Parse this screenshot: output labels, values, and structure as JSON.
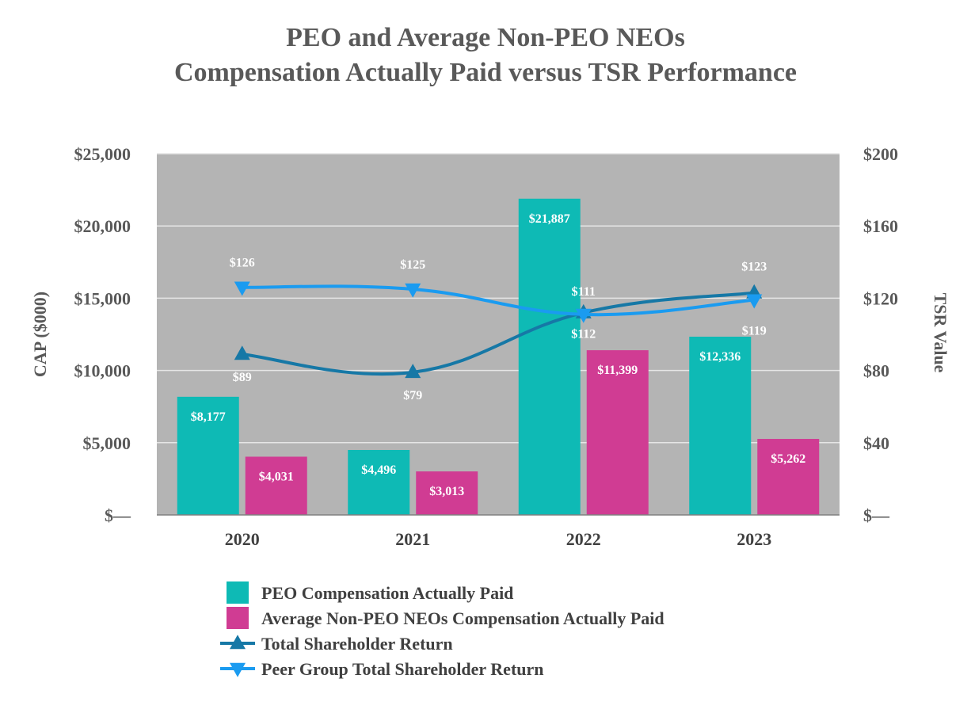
{
  "title_lines": [
    "PEO and Average Non-PEO NEOs",
    "Compensation Actually Paid versus TSR Performance"
  ],
  "chart_data": {
    "type": "bar",
    "categories": [
      "2020",
      "2021",
      "2022",
      "2023"
    ],
    "left_axis": {
      "label": "CAP ($000)",
      "min": 0,
      "max": 25000,
      "step": 5000,
      "ticks": [
        "$—",
        "$5,000",
        "$10,000",
        "$15,000",
        "$20,000",
        "$25,000"
      ]
    },
    "right_axis": {
      "label": "TSR Value",
      "min": 0,
      "max": 200,
      "step": 40,
      "ticks": [
        "$—",
        "$40",
        "$80",
        "$120",
        "$160",
        "$200"
      ]
    },
    "bar_series": [
      {
        "name": "PEO Compensation Actually Paid",
        "color": "#0ebab5",
        "values": [
          8177,
          4496,
          21887,
          12336
        ],
        "labels": [
          "$8,177",
          "$4,496",
          "$21,887",
          "$12,336"
        ]
      },
      {
        "name": "Average Non-PEO NEOs Compensation Actually Paid",
        "color": "#d03c93",
        "values": [
          4031,
          3013,
          11399,
          5262
        ],
        "labels": [
          "$4,031",
          "$3,013",
          "$11,399",
          "$5,262"
        ]
      }
    ],
    "line_series": [
      {
        "name": "Total Shareholder Return",
        "color": "#1678a6",
        "marker": "triangle-up",
        "values": [
          89,
          79,
          112,
          123
        ],
        "labels": [
          "$89",
          "$79",
          "$112",
          "$123"
        ]
      },
      {
        "name": "Peer Group Total Shareholder Return",
        "color": "#1a9bf0",
        "marker": "triangle-down",
        "values": [
          126,
          125,
          111,
          119
        ],
        "labels": [
          "$126",
          "$125",
          "$111",
          "$119"
        ]
      }
    ],
    "grid": true,
    "legend_position": "bottom",
    "plot_background": "#b4b4b4"
  }
}
